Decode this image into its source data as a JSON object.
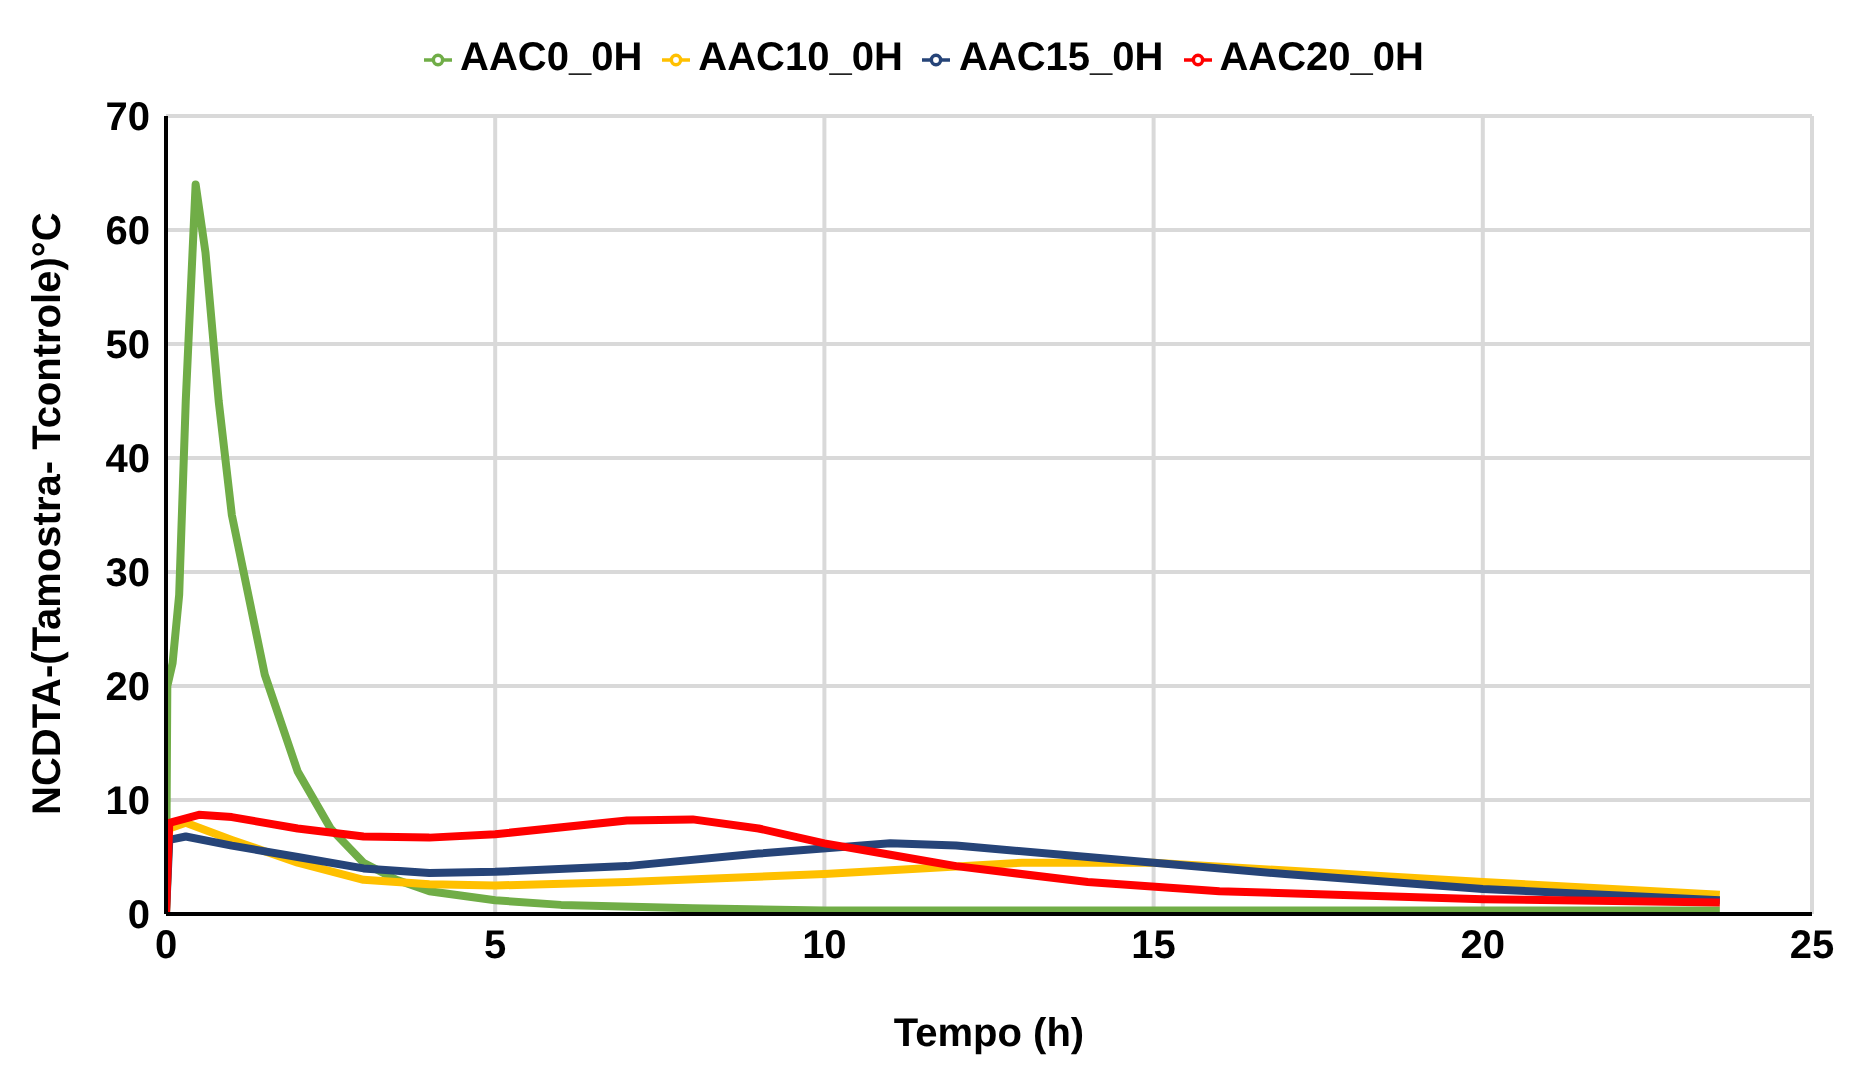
{
  "chart_data": {
    "type": "line",
    "xlabel": "Tempo (h)",
    "ylabel": "NCDTA-(Tamostra- Tcontrole)°C",
    "xlim": [
      0,
      25
    ],
    "xticks": [
      0,
      5,
      10,
      15,
      20,
      25
    ],
    "ylim": [
      0,
      70
    ],
    "yticks": [
      0,
      10,
      20,
      30,
      40,
      50,
      60,
      70
    ],
    "grid": true,
    "legend": "top",
    "marker": "none",
    "line_style": "solid",
    "series": [
      {
        "name": "AAC0_0H",
        "color": "#70ad47",
        "x": [
          0,
          0.02,
          0.1,
          0.2,
          0.3,
          0.45,
          0.6,
          0.8,
          1,
          1.5,
          2,
          2.5,
          3,
          3.5,
          4,
          5,
          6,
          8,
          10,
          15,
          20,
          23.6
        ],
        "values": [
          0,
          20,
          22,
          28,
          45,
          64,
          58,
          45,
          35,
          21,
          12.5,
          7.5,
          4.5,
          3,
          2,
          1.2,
          0.8,
          0.5,
          0.3,
          0.3,
          0.3,
          0.3
        ]
      },
      {
        "name": "AAC10_0H",
        "color": "#ffc000",
        "x": [
          0,
          0.05,
          0.3,
          1,
          2,
          3,
          4,
          5,
          7,
          10,
          13,
          15,
          20,
          23.6
        ],
        "values": [
          0,
          7.5,
          8,
          6.5,
          4.5,
          3,
          2.6,
          2.5,
          2.8,
          3.5,
          4.5,
          4.5,
          2.8,
          1.7
        ]
      },
      {
        "name": "AAC15_0H",
        "color": "#264478",
        "x": [
          0,
          0.05,
          0.3,
          1,
          2,
          3,
          4,
          5,
          7,
          9,
          11,
          12,
          14,
          17,
          20,
          23.6
        ],
        "values": [
          0,
          6.5,
          6.8,
          6,
          5,
          4,
          3.6,
          3.7,
          4.2,
          5.3,
          6.2,
          6,
          5,
          3.5,
          2.2,
          1.2
        ]
      },
      {
        "name": "AAC20_0H",
        "color": "#ff0000",
        "x": [
          0,
          0.05,
          0.5,
          1,
          2,
          3,
          4,
          5,
          7,
          8,
          9,
          10,
          11,
          12,
          14,
          16,
          20,
          23.6
        ],
        "values": [
          0,
          8,
          8.7,
          8.5,
          7.5,
          6.8,
          6.7,
          7,
          8.2,
          8.3,
          7.5,
          6.2,
          5.2,
          4.2,
          2.8,
          2,
          1.3,
          1
        ]
      }
    ]
  }
}
